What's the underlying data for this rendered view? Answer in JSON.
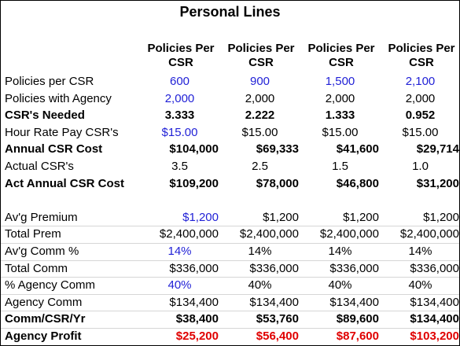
{
  "header": {
    "title": "Personal Lines"
  },
  "table": {
    "columns": [
      "Policies Per CSR",
      "Policies Per CSR",
      "Policies Per CSR",
      "Policies Per CSR"
    ],
    "rows": [
      {
        "label": "Policies per CSR",
        "cells": [
          "600",
          "900",
          "1,500",
          "2,100"
        ]
      },
      {
        "label": "Policies with Agency",
        "cells": [
          "2,000",
          "2,000",
          "2,000",
          "2,000"
        ]
      },
      {
        "label": "CSR's Needed",
        "cells": [
          "3.333",
          "2.222",
          "1.333",
          "0.952"
        ]
      },
      {
        "label": "Hour Rate Pay CSR's",
        "cells": [
          "$15.00",
          "$15.00",
          "$15.00",
          "$15.00"
        ]
      },
      {
        "label": "Annual CSR Cost",
        "cells": [
          "$104,000",
          "$69,333",
          "$41,600",
          "$29,714"
        ]
      },
      {
        "label": "Actual CSR's",
        "cells": [
          "3.5",
          "2.5",
          "1.5",
          "1.0"
        ]
      },
      {
        "label": "Act Annual CSR Cost",
        "cells": [
          "$109,200",
          "$78,000",
          "$46,800",
          "$31,200"
        ]
      },
      {
        "label": "Av'g Premium",
        "cells": [
          "$1,200",
          "$1,200",
          "$1,200",
          "$1,200"
        ]
      },
      {
        "label": "Total Prem",
        "cells": [
          "$2,400,000",
          "$2,400,000",
          "$2,400,000",
          "$2,400,000"
        ]
      },
      {
        "label": "Av'g Comm %",
        "cells": [
          "14%",
          "14%",
          "14%",
          "14%"
        ]
      },
      {
        "label": "Total Comm",
        "cells": [
          "$336,000",
          "$336,000",
          "$336,000",
          "$336,000"
        ]
      },
      {
        "label": "% Agency Comm",
        "cells": [
          "40%",
          "40%",
          "40%",
          "40%"
        ]
      },
      {
        "label": "Agency Comm",
        "cells": [
          "$134,400",
          "$134,400",
          "$134,400",
          "$134,400"
        ]
      },
      {
        "label": "Comm/CSR/Yr",
        "cells": [
          "$38,400",
          "$53,760",
          "$89,600",
          "$134,400"
        ]
      },
      {
        "label": "Agency Profit",
        "cells": [
          "$25,200",
          "$56,400",
          "$87,600",
          "$103,200"
        ]
      }
    ]
  }
}
